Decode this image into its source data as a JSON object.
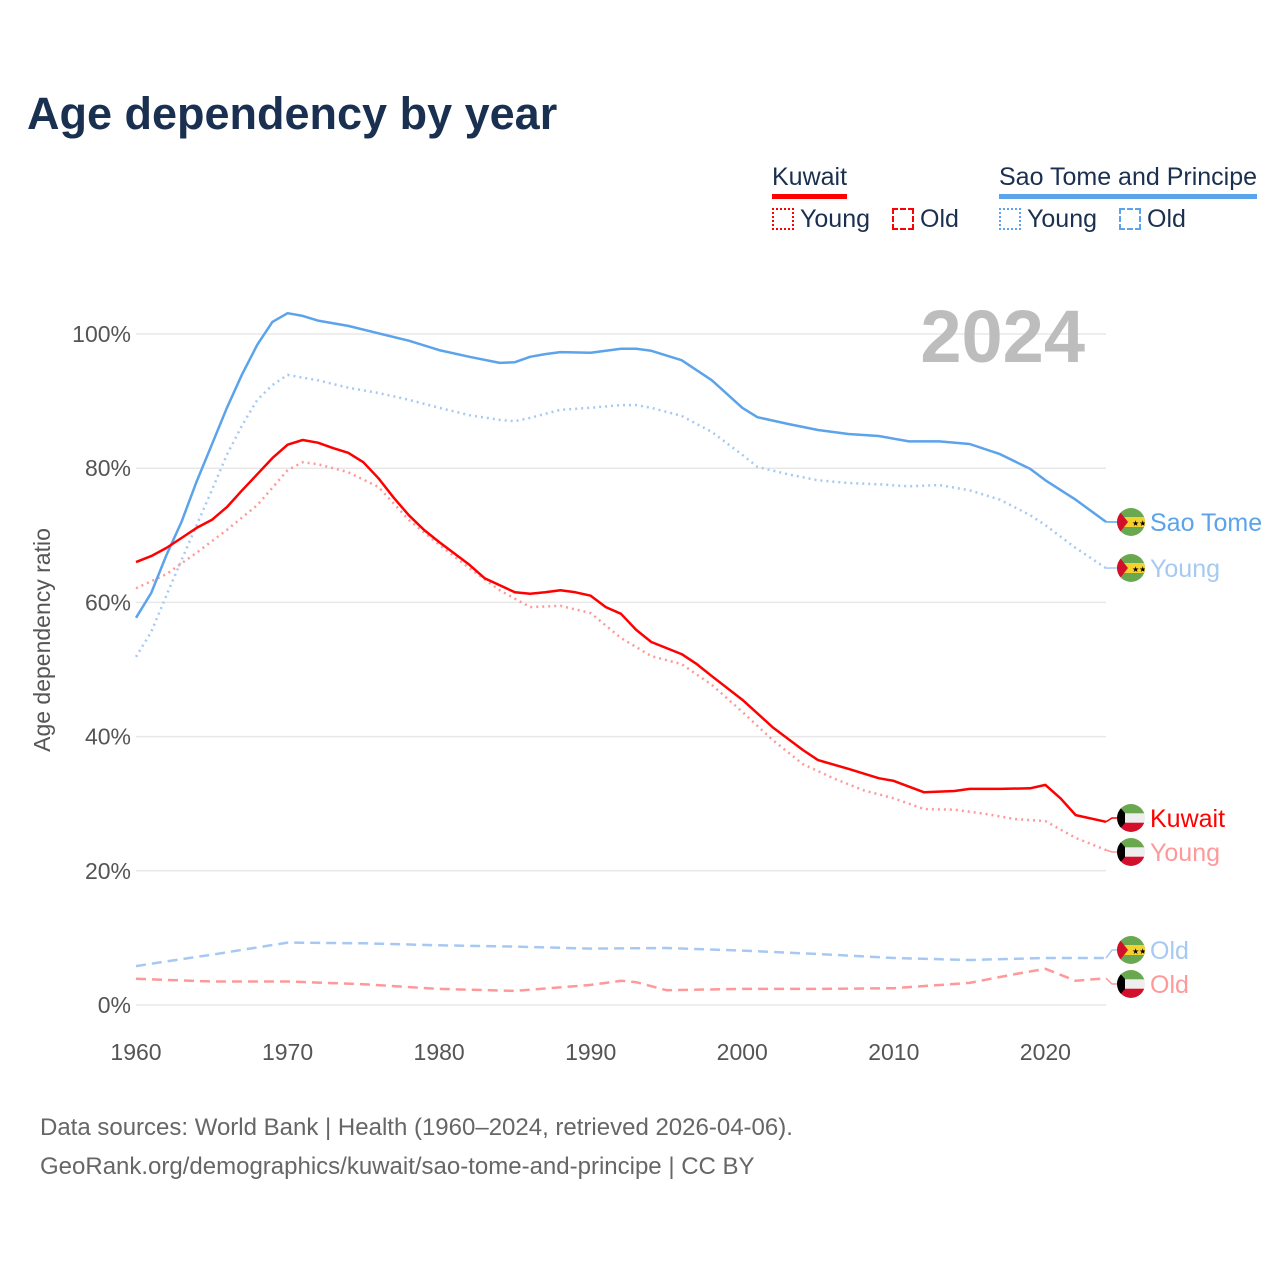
{
  "title": "Age dependency by year",
  "legend": {
    "kuwait": {
      "name": "Kuwait",
      "young": "Young",
      "old": "Old"
    },
    "stp": {
      "name": "Sao Tome and Principe",
      "young": "Young",
      "old": "Old"
    }
  },
  "colors": {
    "kuwait": "#ff0000",
    "kuwait_light": "#ff9999",
    "stp": "#5ba3ea",
    "stp_light": "#a6c9f2"
  },
  "footer": {
    "line1": "Data sources: World Bank | Health (1960–2024, retrieved 2026-04-06).",
    "line2": "GeoRank.org/demographics/kuwait/sao-tome-and-principe | CC BY"
  },
  "chart_data": {
    "type": "line",
    "title": "Age dependency by year",
    "year_label": "2024",
    "xlabel": "",
    "ylabel": "Age dependency ratio",
    "xlim": [
      1960,
      2024
    ],
    "ylim": [
      0,
      100
    ],
    "x_ticks": [
      1960,
      1970,
      1980,
      1990,
      2000,
      2010,
      2020
    ],
    "y_ticks": [
      {
        "v": 0,
        "label": "0%"
      },
      {
        "v": 20,
        "label": "20%"
      },
      {
        "v": 40,
        "label": "40%"
      },
      {
        "v": 60,
        "label": "60%"
      },
      {
        "v": 80,
        "label": "80%"
      },
      {
        "v": 100,
        "label": "100%"
      }
    ],
    "end_labels": {
      "stp_total": "Sao Tome",
      "stp_young": "Young",
      "stp_old": "Old",
      "kw_total": "Kuwait",
      "kw_young": "Young",
      "kw_old": "Old"
    },
    "series": [
      {
        "id": "stp_total",
        "name": "Sao Tome and Principe",
        "style": "solid",
        "color": "#5ba3ea",
        "points": [
          [
            1960,
            57.7
          ],
          [
            1961,
            61.4
          ],
          [
            1962,
            67
          ],
          [
            1963,
            72
          ],
          [
            1964,
            78
          ],
          [
            1965,
            83.5
          ],
          [
            1966,
            89
          ],
          [
            1967,
            94
          ],
          [
            1968,
            98.4
          ],
          [
            1969,
            101.8
          ],
          [
            1970,
            103.1
          ],
          [
            1971,
            102.7
          ],
          [
            1972,
            102
          ],
          [
            1974,
            101.2
          ],
          [
            1976,
            100.1
          ],
          [
            1978,
            99
          ],
          [
            1980,
            97.6
          ],
          [
            1982,
            96.6
          ],
          [
            1984,
            95.7
          ],
          [
            1985,
            95.8
          ],
          [
            1986,
            96.6
          ],
          [
            1987,
            97
          ],
          [
            1988,
            97.3
          ],
          [
            1990,
            97.2
          ],
          [
            1992,
            97.8
          ],
          [
            1993,
            97.8
          ],
          [
            1994,
            97.5
          ],
          [
            1996,
            96.1
          ],
          [
            1998,
            93.1
          ],
          [
            2000,
            89
          ],
          [
            2001,
            87.6
          ],
          [
            2003,
            86.6
          ],
          [
            2005,
            85.7
          ],
          [
            2007,
            85.1
          ],
          [
            2009,
            84.8
          ],
          [
            2011,
            84
          ],
          [
            2013,
            84
          ],
          [
            2015,
            83.6
          ],
          [
            2017,
            82.1
          ],
          [
            2019,
            79.9
          ],
          [
            2020,
            78.2
          ],
          [
            2022,
            75.3
          ],
          [
            2024,
            72
          ]
        ]
      },
      {
        "id": "stp_young",
        "name": "Sao Tome and Principe Young",
        "style": "dotted",
        "color": "#a6c9f2",
        "points": [
          [
            1960,
            51.9
          ],
          [
            1961,
            55.6
          ],
          [
            1962,
            61
          ],
          [
            1963,
            66.3
          ],
          [
            1964,
            71.5
          ],
          [
            1965,
            76.7
          ],
          [
            1966,
            82
          ],
          [
            1967,
            86.4
          ],
          [
            1968,
            90.2
          ],
          [
            1969,
            92.4
          ],
          [
            1970,
            93.9
          ],
          [
            1972,
            93.1
          ],
          [
            1974,
            92
          ],
          [
            1976,
            91.2
          ],
          [
            1978,
            90.2
          ],
          [
            1980,
            89
          ],
          [
            1982,
            87.9
          ],
          [
            1984,
            87.2
          ],
          [
            1985,
            87
          ],
          [
            1986,
            87.5
          ],
          [
            1988,
            88.7
          ],
          [
            1990,
            89
          ],
          [
            1992,
            89.4
          ],
          [
            1993,
            89.4
          ],
          [
            1994,
            89
          ],
          [
            1996,
            87.8
          ],
          [
            1998,
            85.4
          ],
          [
            2000,
            82
          ],
          [
            2001,
            80.2
          ],
          [
            2003,
            79.1
          ],
          [
            2005,
            78.2
          ],
          [
            2007,
            77.8
          ],
          [
            2009,
            77.6
          ],
          [
            2011,
            77.3
          ],
          [
            2013,
            77.5
          ],
          [
            2015,
            76.7
          ],
          [
            2017,
            75.3
          ],
          [
            2019,
            73
          ],
          [
            2020,
            71.5
          ],
          [
            2022,
            68.1
          ],
          [
            2024,
            65.1
          ]
        ]
      },
      {
        "id": "stp_old",
        "name": "Sao Tome and Principe Old",
        "style": "dashed",
        "color": "#a6c9f2",
        "points": [
          [
            1960,
            5.8
          ],
          [
            1962,
            6.5
          ],
          [
            1965,
            7.5
          ],
          [
            1970,
            9.3
          ],
          [
            1975,
            9.2
          ],
          [
            1980,
            8.9
          ],
          [
            1985,
            8.7
          ],
          [
            1990,
            8.4
          ],
          [
            1995,
            8.5
          ],
          [
            2000,
            8.1
          ],
          [
            2005,
            7.6
          ],
          [
            2010,
            7.0
          ],
          [
            2015,
            6.7
          ],
          [
            2020,
            7.0
          ],
          [
            2024,
            7.0
          ]
        ]
      },
      {
        "id": "kw_total",
        "name": "Kuwait",
        "style": "solid",
        "color": "#ff0000",
        "points": [
          [
            1960,
            66
          ],
          [
            1961,
            66.9
          ],
          [
            1962,
            68.1
          ],
          [
            1963,
            69.6
          ],
          [
            1964,
            71.1
          ],
          [
            1965,
            72.3
          ],
          [
            1966,
            74.2
          ],
          [
            1967,
            76.7
          ],
          [
            1968,
            79.1
          ],
          [
            1969,
            81.5
          ],
          [
            1970,
            83.5
          ],
          [
            1971,
            84.2
          ],
          [
            1972,
            83.8
          ],
          [
            1973,
            83
          ],
          [
            1974,
            82.3
          ],
          [
            1975,
            80.9
          ],
          [
            1976,
            78.5
          ],
          [
            1977,
            75.6
          ],
          [
            1978,
            73
          ],
          [
            1979,
            70.8
          ],
          [
            1980,
            69
          ],
          [
            1982,
            65.6
          ],
          [
            1983,
            63.6
          ],
          [
            1985,
            61.5
          ],
          [
            1986,
            61.3
          ],
          [
            1987,
            61.5
          ],
          [
            1988,
            61.8
          ],
          [
            1989,
            61.5
          ],
          [
            1990,
            61
          ],
          [
            1991,
            59.3
          ],
          [
            1992,
            58.3
          ],
          [
            1993,
            55.9
          ],
          [
            1994,
            54.1
          ],
          [
            1996,
            52.3
          ],
          [
            1997,
            50.8
          ],
          [
            1998,
            49
          ],
          [
            2000,
            45.5
          ],
          [
            2002,
            41.4
          ],
          [
            2004,
            38
          ],
          [
            2005,
            36.5
          ],
          [
            2007,
            35.2
          ],
          [
            2009,
            33.8
          ],
          [
            2010,
            33.4
          ],
          [
            2012,
            31.7
          ],
          [
            2014,
            31.9
          ],
          [
            2015,
            32.2
          ],
          [
            2017,
            32.2
          ],
          [
            2019,
            32.3
          ],
          [
            2020,
            32.8
          ],
          [
            2021,
            30.8
          ],
          [
            2022,
            28.3
          ],
          [
            2024,
            27.3
          ]
        ]
      },
      {
        "id": "kw_young",
        "name": "Kuwait Young",
        "style": "dotted",
        "color": "#ff9999",
        "points": [
          [
            1960,
            62.1
          ],
          [
            1962,
            64.2
          ],
          [
            1964,
            67.4
          ],
          [
            1966,
            70.8
          ],
          [
            1968,
            74.5
          ],
          [
            1970,
            79.7
          ],
          [
            1971,
            80.9
          ],
          [
            1972,
            80.6
          ],
          [
            1974,
            79.4
          ],
          [
            1976,
            77.2
          ],
          [
            1978,
            72.3
          ],
          [
            1980,
            68.6
          ],
          [
            1982,
            65.1
          ],
          [
            1984,
            61.8
          ],
          [
            1986,
            59.3
          ],
          [
            1988,
            59.5
          ],
          [
            1990,
            58.4
          ],
          [
            1992,
            54.7
          ],
          [
            1994,
            52
          ],
          [
            1996,
            50.8
          ],
          [
            1998,
            47.7
          ],
          [
            2000,
            43.7
          ],
          [
            2002,
            39.5
          ],
          [
            2004,
            35.9
          ],
          [
            2006,
            33.8
          ],
          [
            2008,
            32
          ],
          [
            2010,
            30.8
          ],
          [
            2012,
            29.2
          ],
          [
            2014,
            29.1
          ],
          [
            2016,
            28.5
          ],
          [
            2018,
            27.7
          ],
          [
            2020,
            27.4
          ],
          [
            2022,
            24.9
          ],
          [
            2024,
            23.1
          ]
        ]
      },
      {
        "id": "kw_old",
        "name": "Kuwait Old",
        "style": "dashed",
        "color": "#ff9999",
        "points": [
          [
            1960,
            3.9
          ],
          [
            1965,
            3.5
          ],
          [
            1970,
            3.5
          ],
          [
            1975,
            3.1
          ],
          [
            1980,
            2.4
          ],
          [
            1985,
            2.1
          ],
          [
            1990,
            3.0
          ],
          [
            1992,
            3.6
          ],
          [
            1993,
            3.4
          ],
          [
            1995,
            2.2
          ],
          [
            2000,
            2.4
          ],
          [
            2005,
            2.4
          ],
          [
            2010,
            2.5
          ],
          [
            2015,
            3.3
          ],
          [
            2018,
            4.6
          ],
          [
            2020,
            5.4
          ],
          [
            2022,
            3.6
          ],
          [
            2024,
            4.0
          ]
        ]
      }
    ]
  }
}
